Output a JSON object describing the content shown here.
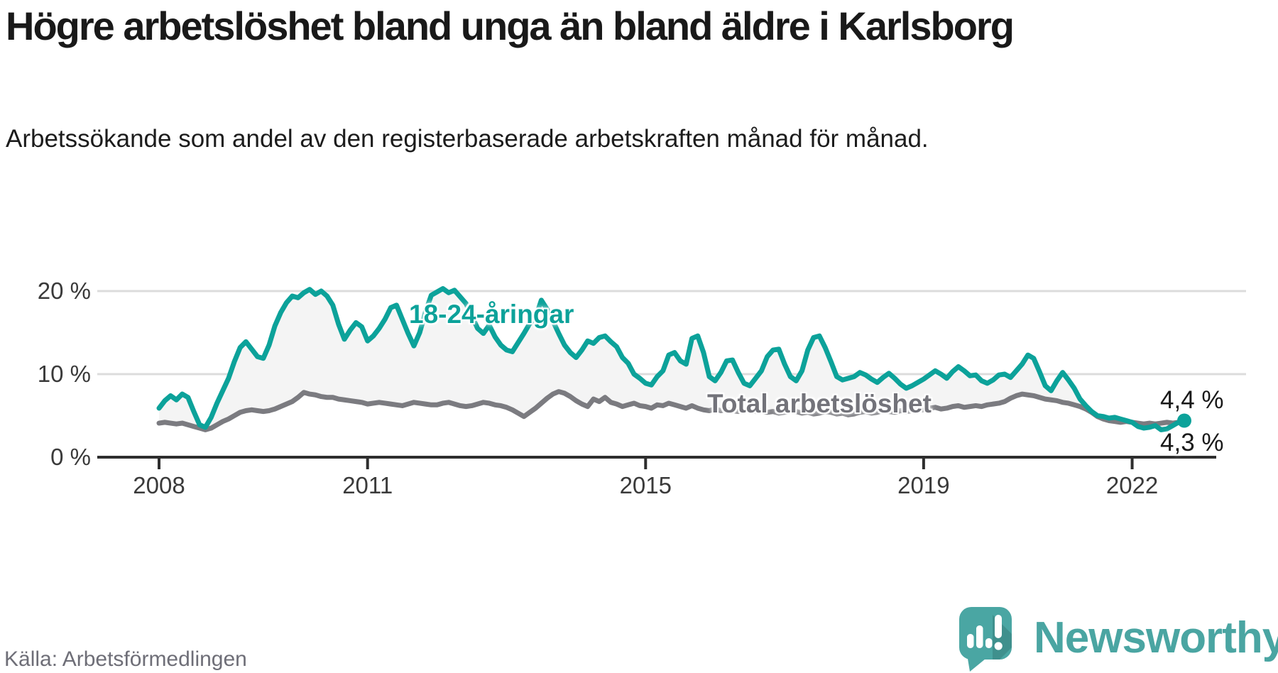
{
  "header": {
    "title": "Högre arbetslöshet bland unga än bland äldre i Karlsborg",
    "subtitle": "Arbetssökande som andel av den registerbaserade arbetskraften månad för månad."
  },
  "chart_data": {
    "type": "line",
    "title": "Högre arbetslöshet bland unga än bland äldre i Karlsborg",
    "subtitle": "Arbetssökande som andel av den registerbaserade arbetskraften månad för månad.",
    "source": "Källa: Arbetsförmedlingen",
    "x_unit": "month",
    "x_range": [
      "2008-01",
      "2022-10"
    ],
    "x_tick_years": [
      2008,
      2011,
      2015,
      2019,
      2022
    ],
    "x_tick_labels": [
      "2008",
      "2011",
      "2015",
      "2019",
      "2022"
    ],
    "y_ticks": [
      {
        "label": "20 %",
        "value": 20
      },
      {
        "label": "10 %",
        "value": 10
      },
      {
        "label": "0 %",
        "value": 0
      }
    ],
    "ylim": [
      0,
      25.6
    ],
    "grid": "horizontal-only",
    "legend": "inline-labels",
    "gridline_color": "#dcdcdc",
    "axis_color": "#2e2e2e",
    "fill_between_color": "#f4f4f4",
    "series": [
      {
        "name": "18-24-åringar",
        "color": "#0ca29a",
        "end_label": "4,4 %",
        "end_value": 4.4,
        "values": [
          5.9,
          6.8,
          7.4,
          6.9,
          7.6,
          7.2,
          5.5,
          3.9,
          3.6,
          4.8,
          6.5,
          8.0,
          9.5,
          11.5,
          13.2,
          13.9,
          13.0,
          12.1,
          11.9,
          13.5,
          15.8,
          17.4,
          18.6,
          19.4,
          19.2,
          19.8,
          20.2,
          19.6,
          20.0,
          19.4,
          18.3,
          16.0,
          14.2,
          15.3,
          16.2,
          15.7,
          14.0,
          14.6,
          15.5,
          16.6,
          18.0,
          18.3,
          16.6,
          14.9,
          13.4,
          15.0,
          17.5,
          19.5,
          19.9,
          20.3,
          19.8,
          20.1,
          19.3,
          18.5,
          17.0,
          15.5,
          14.9,
          15.9,
          14.5,
          13.5,
          12.9,
          12.7,
          13.8,
          14.9,
          16.1,
          16.8,
          18.9,
          17.8,
          16.4,
          14.9,
          13.5,
          12.6,
          12.0,
          12.9,
          14.0,
          13.7,
          14.4,
          14.6,
          13.9,
          13.3,
          12.0,
          11.3,
          10.0,
          9.5,
          8.9,
          8.7,
          9.7,
          10.4,
          12.3,
          12.6,
          11.6,
          11.2,
          14.3,
          14.6,
          12.6,
          9.7,
          9.2,
          10.2,
          11.6,
          11.7,
          10.2,
          8.9,
          8.6,
          9.5,
          10.4,
          12.1,
          12.9,
          13.0,
          11.2,
          9.7,
          9.2,
          10.4,
          12.9,
          14.4,
          14.6,
          13.2,
          11.5,
          9.7,
          9.3,
          9.5,
          9.7,
          10.2,
          9.9,
          9.4,
          9.0,
          9.6,
          10.1,
          9.5,
          8.8,
          8.3,
          8.6,
          9.0,
          9.4,
          9.9,
          10.4,
          10.0,
          9.5,
          10.3,
          10.9,
          10.4,
          9.8,
          9.9,
          9.2,
          8.9,
          9.3,
          9.9,
          10.0,
          9.6,
          10.4,
          11.2,
          12.3,
          11.9,
          10.3,
          8.6,
          8.0,
          9.2,
          10.2,
          9.3,
          8.3,
          7.0,
          6.2,
          5.5,
          5.0,
          4.9,
          4.7,
          4.8,
          4.6,
          4.4,
          4.2,
          3.7,
          3.5,
          3.6,
          3.8,
          3.3,
          3.4,
          3.8,
          4.2,
          4.4
        ]
      },
      {
        "name": "Total arbetslöshet",
        "color": "#7b7b80",
        "end_label": "4,3 %",
        "end_value": 4.3,
        "values": [
          4.1,
          4.2,
          4.1,
          4.0,
          4.1,
          3.9,
          3.7,
          3.5,
          3.3,
          3.5,
          3.9,
          4.3,
          4.6,
          5.0,
          5.4,
          5.6,
          5.7,
          5.6,
          5.5,
          5.6,
          5.8,
          6.1,
          6.4,
          6.7,
          7.2,
          7.8,
          7.6,
          7.5,
          7.3,
          7.2,
          7.2,
          7.0,
          6.9,
          6.8,
          6.7,
          6.6,
          6.4,
          6.5,
          6.6,
          6.5,
          6.4,
          6.3,
          6.2,
          6.4,
          6.6,
          6.5,
          6.4,
          6.3,
          6.3,
          6.5,
          6.6,
          6.4,
          6.2,
          6.1,
          6.2,
          6.4,
          6.6,
          6.5,
          6.3,
          6.2,
          6.0,
          5.7,
          5.3,
          4.9,
          5.4,
          5.9,
          6.5,
          7.1,
          7.6,
          7.9,
          7.7,
          7.3,
          6.8,
          6.4,
          6.1,
          7.0,
          6.7,
          7.2,
          6.6,
          6.4,
          6.1,
          6.3,
          6.5,
          6.2,
          6.1,
          5.9,
          6.3,
          6.2,
          6.5,
          6.3,
          6.1,
          5.9,
          6.2,
          5.9,
          5.7,
          5.6,
          5.8,
          5.6,
          5.7,
          5.6,
          5.5,
          5.6,
          5.7,
          5.5,
          5.6,
          5.4,
          5.5,
          5.3,
          5.4,
          5.6,
          5.5,
          5.3,
          5.4,
          5.2,
          5.3,
          5.5,
          5.4,
          5.2,
          5.3,
          5.1,
          5.2,
          5.4,
          5.5,
          5.3,
          5.4,
          5.6,
          5.5,
          5.4,
          5.6,
          5.5,
          5.6,
          5.7,
          5.7,
          5.9,
          6.0,
          5.8,
          5.9,
          6.1,
          6.2,
          6.0,
          6.1,
          6.2,
          6.1,
          6.3,
          6.4,
          6.5,
          6.7,
          7.1,
          7.4,
          7.6,
          7.5,
          7.4,
          7.2,
          7.0,
          6.9,
          6.8,
          6.6,
          6.5,
          6.3,
          6.1,
          5.8,
          5.4,
          4.9,
          4.6,
          4.4,
          4.3,
          4.2,
          4.3,
          4.2,
          4.1,
          4.0,
          4.1,
          4.0,
          4.1,
          4.2,
          4.1,
          4.2,
          4.3
        ]
      }
    ]
  },
  "footer": {
    "source": "Källa: Arbetsförmedlingen",
    "brand": "Newsworthy"
  }
}
